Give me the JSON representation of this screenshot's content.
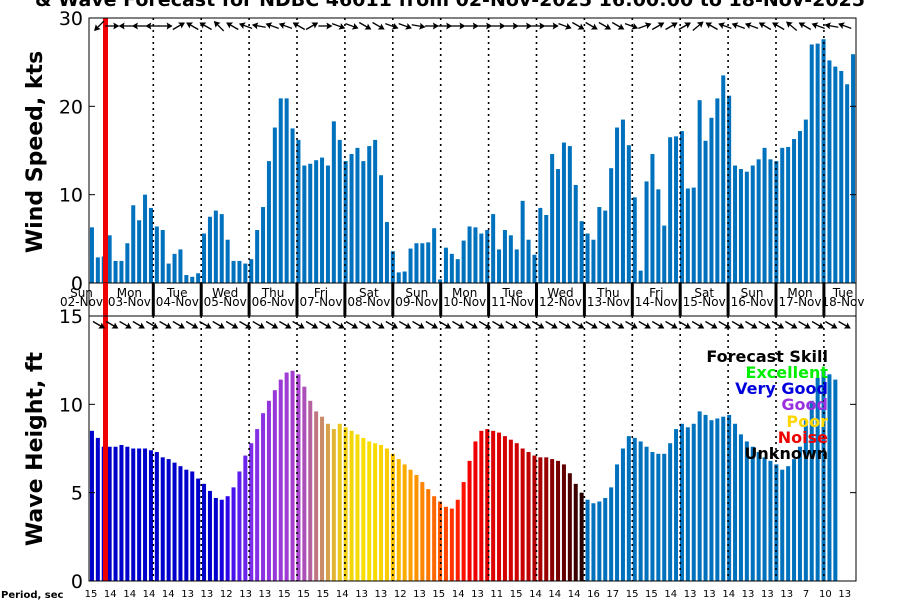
{
  "title": "& Wave Forecast for NDBC 46011 from 02-Nov-2025 16:00:00 to 18-Nov-2025",
  "chart_data": [
    {
      "type": "bar",
      "name": "wind",
      "ylabel": "Wind Speed, kts",
      "ylim": [
        0,
        30
      ],
      "yticks": [
        0,
        10,
        20,
        30
      ],
      "color": "#0072BD",
      "values": [
        6.3,
        2.9,
        3.0,
        5.4,
        2.5,
        2.5,
        4.5,
        8.8,
        7.1,
        10.0,
        8.5,
        6.4,
        6.0,
        2.2,
        3.3,
        3.8,
        0.9,
        0.7,
        1.1,
        5.6,
        7.5,
        8.2,
        7.8,
        4.9,
        2.5,
        2.5,
        2.2,
        2.7,
        6.0,
        8.6,
        13.8,
        17.6,
        20.9,
        20.9,
        17.5,
        16.2,
        13.3,
        13.5,
        13.9,
        14.2,
        13.3,
        18.3,
        16.2,
        13.8,
        14.6,
        15.3,
        13.8,
        15.5,
        16.2,
        12.2,
        6.9,
        3.6,
        1.2,
        1.3,
        3.9,
        4.5,
        4.5,
        4.6,
        6.2,
        0.4,
        4.0,
        3.3,
        2.7,
        4.8,
        6.4,
        6.3,
        5.6,
        6.0,
        7.8,
        3.8,
        6.0,
        5.4,
        3.8,
        9.3,
        4.9,
        3.2,
        8.5,
        7.7,
        14.6,
        12.9,
        15.9,
        15.5,
        11.1,
        7.0,
        5.6,
        4.9,
        8.6,
        8.2,
        13.0,
        17.6,
        18.5,
        15.6,
        9.7,
        1.4,
        11.5,
        14.6,
        10.6,
        6.5,
        16.5,
        16.6,
        17.2,
        10.7,
        10.8,
        20.7,
        16.1,
        18.7,
        20.9,
        23.5,
        21.2,
        13.3,
        12.9,
        12.6,
        13.3,
        14.0,
        15.3,
        14.0,
        13.8,
        15.3,
        15.4,
        16.3,
        17.2,
        18.5,
        27.0,
        27.1,
        27.6,
        25.2,
        24.5,
        24.0,
        22.5,
        25.9
      ]
    },
    {
      "type": "bar",
      "name": "wave",
      "ylabel": "Wave Height, ft",
      "ylim": [
        0,
        15
      ],
      "yticks": [
        0,
        5,
        10,
        15
      ],
      "values": [
        8.5,
        8.1,
        7.6,
        7.6,
        7.6,
        7.7,
        7.6,
        7.5,
        7.5,
        7.5,
        7.4,
        7.3,
        7.0,
        6.9,
        6.7,
        6.5,
        6.3,
        6.2,
        5.8,
        5.5,
        5.1,
        4.7,
        4.6,
        4.8,
        5.3,
        6.2,
        7.1,
        7.8,
        8.6,
        9.5,
        10.2,
        10.8,
        11.4,
        11.8,
        11.9,
        11.7,
        11.0,
        10.2,
        9.6,
        9.3,
        8.9,
        8.6,
        8.9,
        8.7,
        8.5,
        8.3,
        8.1,
        7.9,
        7.8,
        7.7,
        7.5,
        7.2,
        6.9,
        6.6,
        6.3,
        6.0,
        5.6,
        5.2,
        4.8,
        4.5,
        4.2,
        4.1,
        4.6,
        5.6,
        6.8,
        7.9,
        8.5,
        8.6,
        8.5,
        8.4,
        8.2,
        8.0,
        7.8,
        7.5,
        7.3,
        7.1,
        7.0,
        7.0,
        6.9,
        6.8,
        6.6,
        6.1,
        5.5,
        5.0,
        4.6,
        4.4,
        4.5,
        4.7,
        5.3,
        6.6,
        7.5,
        8.2,
        8.1,
        7.9,
        7.6,
        7.3,
        7.2,
        7.2,
        7.8,
        8.6,
        8.9,
        8.7,
        8.9,
        9.6,
        9.4,
        9.1,
        9.2,
        9.3,
        9.4,
        8.9,
        8.3,
        7.9,
        7.6,
        7.3,
        7.0,
        6.8,
        6.6,
        6.3,
        6.5,
        6.9,
        7.6,
        9.1,
        10.2,
        11.5,
        11.9,
        11.7,
        11.4
      ],
      "quality_colors": [
        "#0000CD",
        "#0000CD",
        "#0000CD",
        "#0000CD",
        "#0000CD",
        "#0000CD",
        "#0000CD",
        "#0000CD",
        "#0000CD",
        "#0000CD",
        "#0000CD",
        "#0000CD",
        "#0000CD",
        "#0000CD",
        "#0000CD",
        "#0000CD",
        "#0000CD",
        "#0000CD",
        "#0000CD",
        "#0000CD",
        "#0000CD",
        "#0000CD",
        "#1700DD",
        "#2E05E8",
        "#4711EE",
        "#5C1CEF",
        "#6B24EC",
        "#7A2CE9",
        "#842FE5",
        "#8C32E2",
        "#9235DE",
        "#9838DA",
        "#9B3AD6",
        "#9F3CD3",
        "#A33ECF",
        "#A741CC",
        "#AD4FB8",
        "#B5609F",
        "#C07683",
        "#CB8A67",
        "#D6A14B",
        "#E1B533",
        "#EBC820",
        "#F0D012",
        "#F3D60A",
        "#F6DB05",
        "#F8DE02",
        "#F9DF00",
        "#FADB00",
        "#FAD400",
        "#FBCB00",
        "#FBC200",
        "#FCB700",
        "#FCAC00",
        "#FD9F00",
        "#FD9300",
        "#FE8500",
        "#FE7700",
        "#FE6800",
        "#FF5800",
        "#FF4700",
        "#FF3400",
        "#FF2000",
        "#FF1000",
        "#F50000",
        "#EE0000",
        "#E80000",
        "#E30000",
        "#DE0000",
        "#DA0000",
        "#D60000",
        "#D20000",
        "#CE0000",
        "#C80000",
        "#BF0000",
        "#B40000",
        "#A80000",
        "#9A0000",
        "#8A0000",
        "#780000",
        "#640000",
        "#500000",
        "#3C0000",
        "#280000",
        "#0072BD",
        "#0072BD",
        "#0072BD",
        "#0072BD",
        "#0072BD",
        "#0072BD",
        "#0072BD",
        "#0072BD",
        "#0072BD",
        "#0072BD",
        "#0072BD",
        "#0072BD",
        "#0072BD",
        "#0072BD",
        "#0072BD",
        "#0072BD",
        "#0072BD",
        "#0072BD",
        "#0072BD",
        "#0072BD",
        "#0072BD",
        "#0072BD",
        "#0072BD",
        "#0072BD",
        "#0072BD",
        "#0072BD",
        "#0072BD",
        "#0072BD",
        "#0072BD",
        "#0072BD",
        "#0072BD",
        "#0072BD",
        "#0072BD",
        "#0072BD",
        "#0072BD",
        "#0072BD",
        "#0072BD",
        "#0072BD",
        "#0072BD",
        "#0072BD",
        "#0072BD",
        "#0072BD",
        "#0072BD"
      ]
    }
  ],
  "days": [
    {
      "day": "Sun",
      "date": "02-Nov"
    },
    {
      "day": "Mon",
      "date": "03-Nov"
    },
    {
      "day": "Tue",
      "date": "04-Nov"
    },
    {
      "day": "Wed",
      "date": "05-Nov"
    },
    {
      "day": "Thu",
      "date": "06-Nov"
    },
    {
      "day": "Fri",
      "date": "07-Nov"
    },
    {
      "day": "Sat",
      "date": "08-Nov"
    },
    {
      "day": "Sun",
      "date": "09-Nov"
    },
    {
      "day": "Mon",
      "date": "10-Nov"
    },
    {
      "day": "Tue",
      "date": "11-Nov"
    },
    {
      "day": "Wed",
      "date": "12-Nov"
    },
    {
      "day": "Thu",
      "date": "13-Nov"
    },
    {
      "day": "Fri",
      "date": "14-Nov"
    },
    {
      "day": "Sat",
      "date": "15-Nov"
    },
    {
      "day": "Sun",
      "date": "16-Nov"
    },
    {
      "day": "Mon",
      "date": "17-Nov"
    },
    {
      "day": "Tue",
      "date": "18-Nov"
    }
  ],
  "wind_arrow_angles": [
    135,
    0,
    180,
    180,
    180,
    0,
    -30,
    -150,
    -150,
    -135,
    -150,
    -160,
    -170,
    -160,
    -160,
    -150,
    -30,
    0,
    20,
    20,
    30,
    30,
    20,
    20,
    10,
    0,
    0,
    0,
    0,
    0,
    0,
    0,
    0,
    0,
    0,
    20,
    30,
    30,
    30,
    30,
    20,
    -20,
    -30,
    -30,
    -30,
    -40,
    -150,
    -160,
    -160,
    -160,
    -150,
    -150,
    -140,
    -150,
    -160,
    -170,
    -160
  ],
  "wave_arrow_angles": [
    30,
    30,
    30,
    30,
    30,
    30,
    30,
    30,
    30,
    30,
    30,
    30,
    30,
    30,
    30,
    30,
    30,
    30,
    30,
    30,
    30,
    30,
    30,
    30,
    30,
    30,
    30,
    30,
    30,
    30,
    30,
    30,
    30,
    30,
    30,
    30,
    30,
    30,
    30,
    30,
    30,
    30,
    30,
    30,
    30,
    30,
    30,
    30,
    30,
    30,
    30,
    30,
    30,
    30,
    30,
    30,
    30
  ],
  "period_label": "Period, sec",
  "periods": [
    "15",
    "14",
    "14",
    "14",
    "14",
    "13",
    "13",
    "12",
    "13",
    "13",
    "15",
    "15",
    "15",
    "14",
    "13",
    "13",
    "12",
    "13",
    "15",
    "14",
    "13",
    "11",
    "15",
    "14",
    "14",
    "14",
    "16",
    "17",
    "15",
    "15",
    "14",
    "13",
    "13",
    "14",
    "13",
    "13",
    "13",
    "7",
    "10",
    "13"
  ],
  "legend": {
    "title": "Forecast Skill",
    "items": [
      {
        "label": "Excellent",
        "color": "#00EE00"
      },
      {
        "label": "Very Good",
        "color": "#0000DD"
      },
      {
        "label": "Good",
        "color": "#9A30E0"
      },
      {
        "label": "Poor",
        "color": "#FFD700"
      },
      {
        "label": "Noise",
        "color": "#EE0000"
      },
      {
        "label": "Unknown",
        "color": "#000000"
      }
    ]
  }
}
